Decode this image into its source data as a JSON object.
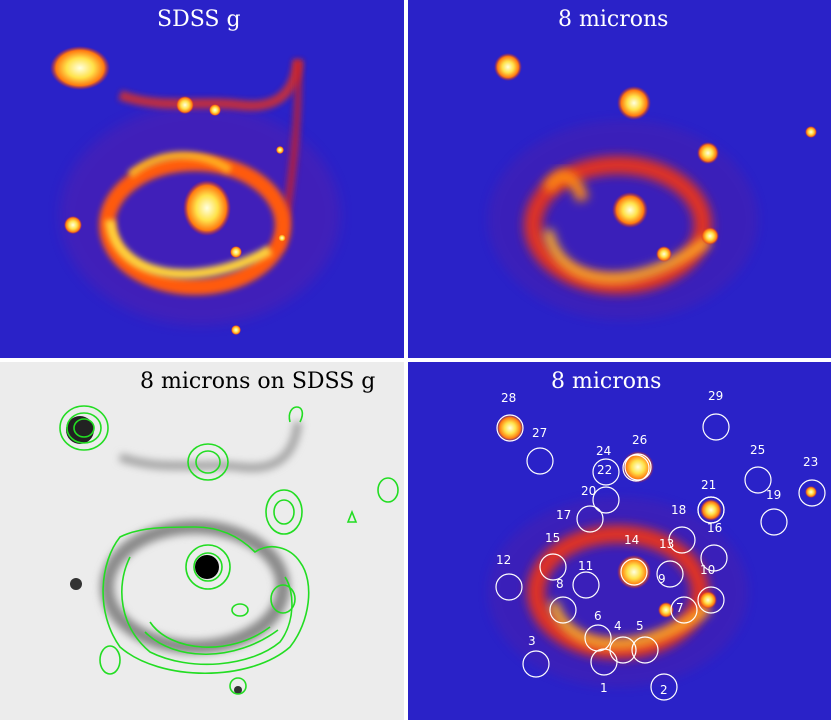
{
  "panels": {
    "top_left": {
      "title": "SDSS g"
    },
    "top_right": {
      "title": "8 microns"
    },
    "bottom_left": {
      "title": "8 microns on SDSS g"
    },
    "bottom_right": {
      "title": "8 microns"
    }
  },
  "regions": [
    "1",
    "2",
    "3",
    "4",
    "5",
    "6",
    "7",
    "8",
    "9",
    "10",
    "11",
    "12",
    "13",
    "14",
    "15",
    "16",
    "17",
    "18",
    "19",
    "20",
    "21",
    "22",
    "23",
    "24",
    "25",
    "26",
    "27",
    "28",
    "29"
  ],
  "colors": {
    "sky_blue": "#2a22c8",
    "hot_yellow": "#fff46a",
    "hot_orange": "#ff8a10",
    "warm_red": "#e0241c",
    "contour_green": "#22dd22",
    "region_circle": "#ffffff"
  }
}
